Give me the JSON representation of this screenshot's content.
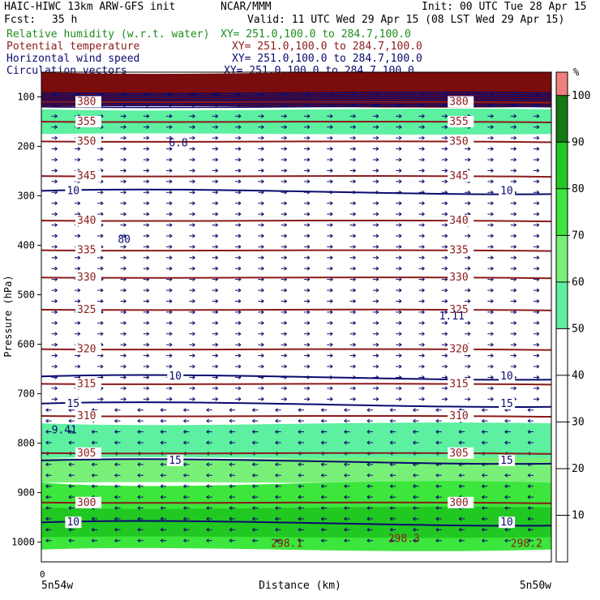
{
  "header": {
    "model_line": "HAIC-HIWC 13km ARW-GFS init",
    "org": "NCAR/MMM",
    "init": "Init: 00 UTC Tue 28 Apr 15",
    "fcst_label": "Fcst:",
    "fcst_value": "35 h",
    "valid": "Valid: 11 UTC Wed 29 Apr 15 (08 LST Wed 29 Apr 15)"
  },
  "fields": [
    {
      "name": "Relative humidity (w.r.t. water)",
      "xy": "XY= 251.0,100.0 to 284.7,100.0",
      "color": "#1e8c1e"
    },
    {
      "name": "Potential temperature",
      "xy": "XY= 251.0,100.0 to 284.7,100.0",
      "color": "#8b1a1a"
    },
    {
      "name": "Horizontal wind speed",
      "xy": "XY= 251.0,100.0 to 284.7,100.0",
      "color": "#0a0a6e"
    },
    {
      "name": "Circulation vectors",
      "xy": "XY= 251.0,100.0 to 284.7,100.0",
      "color": "#0a0a6e"
    }
  ],
  "colors": {
    "theta": "#8b1a1a",
    "wind": "#0a0a6e",
    "vectors": "#0a0a6e"
  },
  "chart_data": {
    "type": "heatmap",
    "title": "",
    "xlabel": "Distance (km)",
    "ylabel": "Pressure (hPa)",
    "x_start_tick": "0",
    "x_left_label": "5n54w",
    "x_right_label": "5n50w",
    "y_ticks": [
      100,
      200,
      300,
      400,
      500,
      600,
      700,
      800,
      900,
      1000
    ],
    "ylim": [
      1040,
      50
    ],
    "colorbar": {
      "unit": "%",
      "ticks": [
        10,
        20,
        30,
        40,
        50,
        60,
        70,
        80,
        90,
        100
      ],
      "bins": [
        {
          "from": 50,
          "to": 60,
          "color": "#5cf0a0"
        },
        {
          "from": 60,
          "to": 70,
          "color": "#78f078"
        },
        {
          "from": 70,
          "to": 80,
          "color": "#3ce63c"
        },
        {
          "from": 80,
          "to": 90,
          "color": "#22c822"
        },
        {
          "from": 90,
          "to": 100,
          "color": "#147814"
        },
        {
          "from": 100,
          "to": 105,
          "color": "#f08080"
        }
      ]
    },
    "rh_layers": [
      {
        "p_top": 50,
        "p_bot": 120,
        "bin": "dark-red",
        "color": "#7a0c0c"
      },
      {
        "p_top": 125,
        "p_bot": 175,
        "bin": "50-60",
        "color": "#5cf0a0"
      },
      {
        "p_top": 760,
        "p_bot": 830,
        "bin": "50-60",
        "color": "#5cf0a0"
      },
      {
        "p_top": 830,
        "p_bot": 880,
        "bin": "60-70",
        "color": "#78f078"
      },
      {
        "p_top": 880,
        "p_bot": 1015,
        "bin": "70-80",
        "color": "#3ce63c"
      },
      {
        "p_top": 930,
        "p_bot": 990,
        "bin": "80-90",
        "color": "#22c822"
      }
    ],
    "theta_contours": [
      {
        "level": 380,
        "p": 110
      },
      {
        "level": 355,
        "p": 150
      },
      {
        "level": 350,
        "p": 190
      },
      {
        "level": 345,
        "p": 260
      },
      {
        "level": 340,
        "p": 350
      },
      {
        "level": 335,
        "p": 410
      },
      {
        "level": 330,
        "p": 465
      },
      {
        "level": 325,
        "p": 530
      },
      {
        "level": 320,
        "p": 610
      },
      {
        "level": 315,
        "p": 680
      },
      {
        "level": 310,
        "p": 745
      },
      {
        "level": 305,
        "p": 820
      },
      {
        "level": 300,
        "p": 920
      }
    ],
    "wind_contours": [
      {
        "level": 10,
        "p": 290
      },
      {
        "level": 10,
        "p": 665
      },
      {
        "level": 15,
        "p": 720
      },
      {
        "level": 15,
        "p": 835
      },
      {
        "level": 10,
        "p": 960
      }
    ],
    "extrema_labels": [
      {
        "text": "6.8",
        "x_frac": 0.25,
        "p": 200
      },
      {
        "text": "80",
        "x_frac": 0.15,
        "p": 395
      },
      {
        "text": "1.11",
        "x_frac": 0.78,
        "p": 550
      },
      {
        "text": "9.41",
        "x_frac": 0.02,
        "p": 780
      },
      {
        "text": "298.1",
        "x_frac": 0.45,
        "p": 1010
      },
      {
        "text": "298.3",
        "x_frac": 0.68,
        "p": 1000
      },
      {
        "text": "298.2",
        "x_frac": 0.92,
        "p": 1010
      }
    ]
  }
}
